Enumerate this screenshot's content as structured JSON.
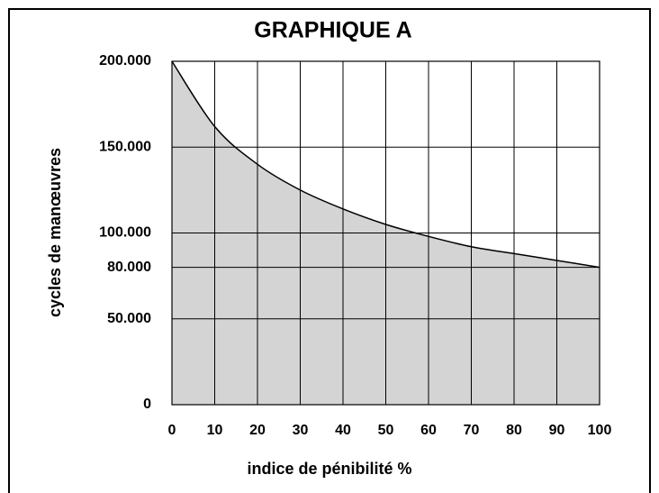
{
  "chart_data": {
    "type": "area",
    "title": "GRAPHIQUE  A",
    "xlabel": "indice de pénibilité %",
    "ylabel": "cycles de manœuvres",
    "x": [
      0,
      10,
      20,
      30,
      40,
      50,
      60,
      70,
      80,
      90,
      100
    ],
    "series": [
      {
        "name": "cycles de manœuvres",
        "color": "#d4d4d4",
        "values": [
          200000,
          162000,
          140000,
          125000,
          114000,
          105000,
          98000,
          92000,
          88000,
          84000,
          80000
        ]
      }
    ],
    "xlim": [
      0,
      100
    ],
    "xticks": [
      0,
      10,
      20,
      30,
      40,
      50,
      60,
      70,
      80,
      90,
      100
    ],
    "ylim": [
      0,
      200000
    ],
    "yticks": [
      {
        "value": 0,
        "label": "0"
      },
      {
        "value": 50000,
        "label": "50.000"
      },
      {
        "value": 80000,
        "label": "80.000"
      },
      {
        "value": 100000,
        "label": "100.000"
      },
      {
        "value": 150000,
        "label": "150.000"
      },
      {
        "value": 200000,
        "label": "200.000"
      }
    ],
    "grid": true
  }
}
